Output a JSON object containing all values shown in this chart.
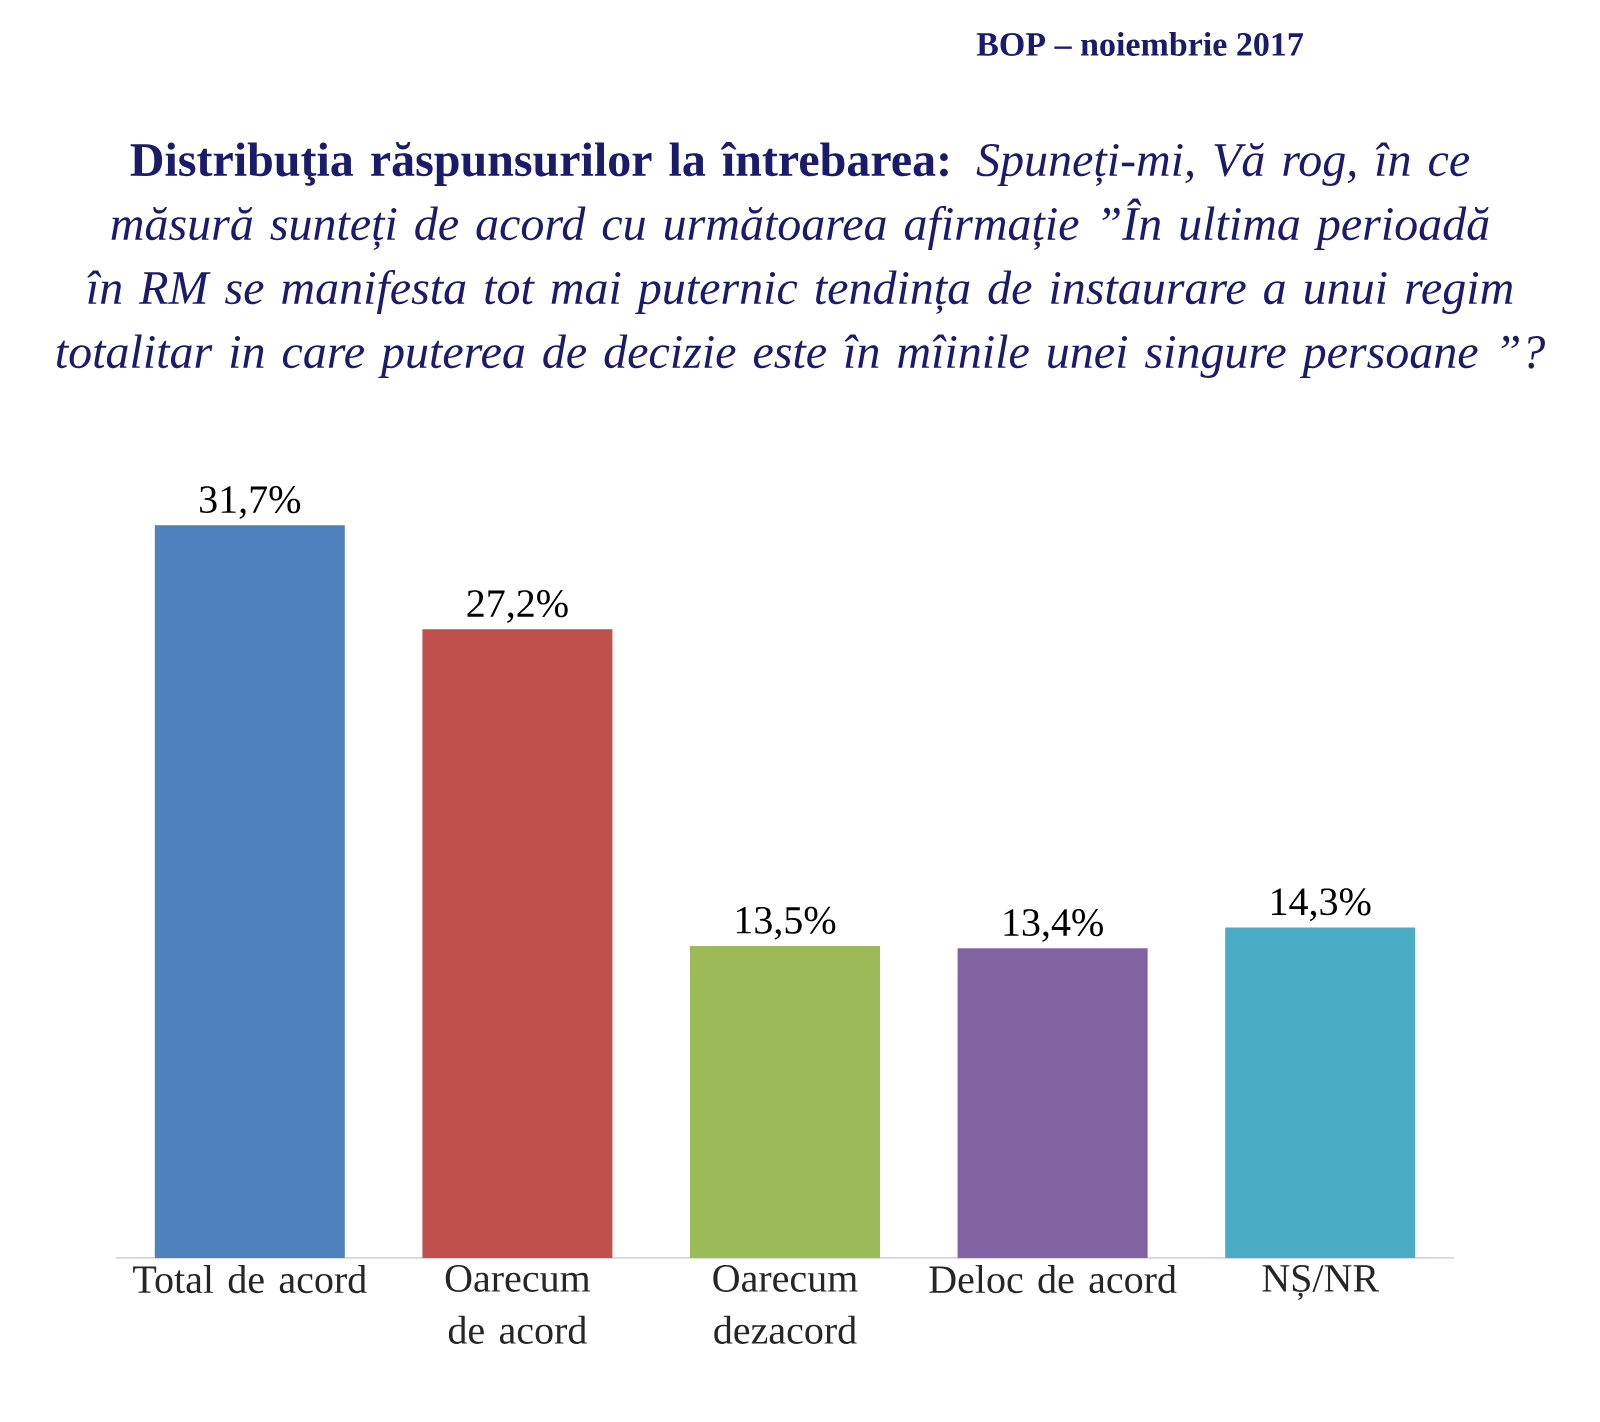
{
  "chart_data": {
    "type": "bar",
    "title": "**Distribuţia răspunsurilor la întrebarea:** *Spuneți-mi, Vă rog, în ce măsură sunteți de acord cu următoarea afirmație ”În ultima perioadă în RM se manifesta tot mai puternic tendința de instaurare a unui regim totalitar in care puterea de decizie este în mîinile unei singure persoane ”?*",
    "subtitle": "BOP – noiembrie 2017",
    "categories": [
      "Total de acord",
      "Oarecum de acord",
      "Oarecum dezacord",
      "Deloc de acord",
      "NȘ/NR"
    ],
    "values": [
      31.7,
      27.2,
      13.5,
      13.4,
      14.3
    ],
    "colors": [
      "#4f81bd",
      "#c0504d",
      "#9bbb59",
      "#8064a2",
      "#4bacc6"
    ],
    "value_labels": [
      "31,7%",
      "27,2%",
      "13,5%",
      "13,4%",
      "14,3%"
    ]
  }
}
